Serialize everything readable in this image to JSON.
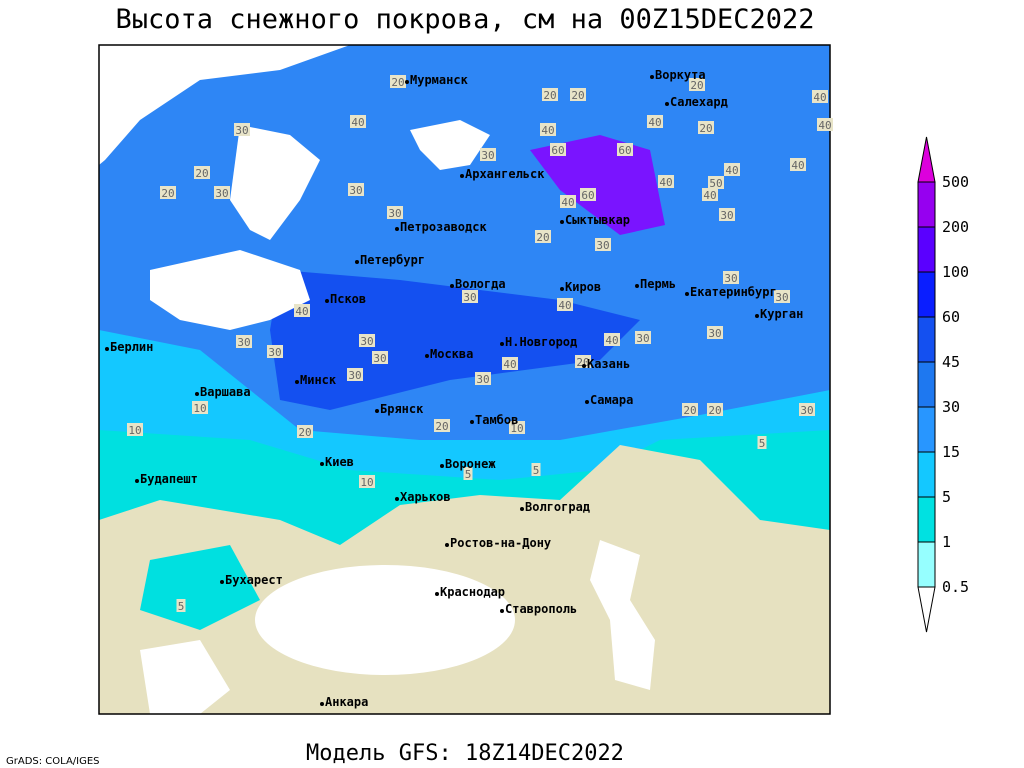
{
  "header": {
    "title": "Высота снежного покрова, см на 00Z15DEC2022"
  },
  "footer": {
    "model": "Модель GFS: 18Z14DEC2022",
    "credit": "GrADS: COLA/IGES"
  },
  "cities": [
    "Мурманск",
    "Воркута",
    "Салехард",
    "Архангельск",
    "Сыктывкар",
    "Петрозаводск",
    "Петербург",
    "Вологда",
    "Киров",
    "Пермь",
    "Екатеринбург",
    "Курган",
    "Псков",
    "Берлин",
    "Москва",
    "Н.Новгород",
    "Казань",
    "Минск",
    "Варшава",
    "Самара",
    "Брянск",
    "Тамбов",
    "Киев",
    "Воронеж",
    "Будапешт",
    "Харьков",
    "Волгоград",
    "Ростов-на-Дону",
    "Бухарест",
    "Краснодар",
    "Ставрополь",
    "Анкара"
  ],
  "contour_labels": [
    20,
    20,
    20,
    20,
    40,
    40,
    20,
    40,
    30,
    40,
    30,
    40,
    60,
    60,
    20,
    30,
    20,
    40,
    50,
    40,
    40,
    30,
    40,
    60,
    40,
    30,
    30,
    20,
    30,
    30,
    30,
    30,
    40,
    40,
    30,
    30,
    30,
    40,
    30,
    30,
    30,
    30,
    40,
    20,
    30,
    10,
    20,
    20,
    30,
    10,
    20,
    20,
    10,
    5,
    5,
    5,
    10,
    5
  ],
  "colorbar": {
    "levels": [
      0.5,
      1,
      5,
      15,
      30,
      45,
      60,
      100,
      200,
      500
    ],
    "colors": [
      "#ffffff",
      "#96ffff",
      "#00e1e1",
      "#14c8ff",
      "#2896ff",
      "#1e78f0",
      "#1450f0",
      "#0a1eff",
      "#5a00ff",
      "#9600f0",
      "#dc00dc"
    ]
  }
}
